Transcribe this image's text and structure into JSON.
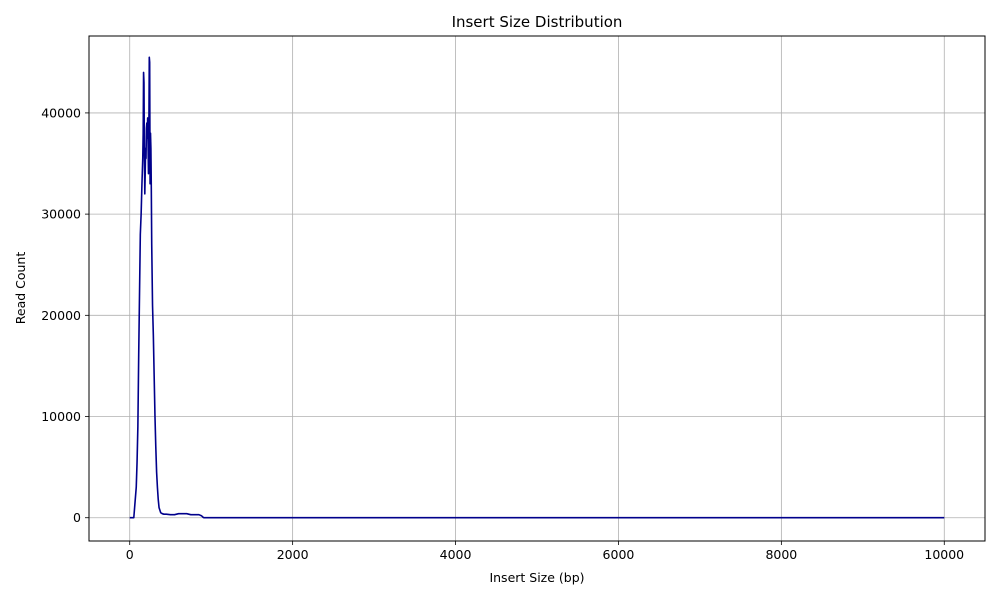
{
  "chart_data": {
    "type": "line",
    "title": "Insert Size Distribution",
    "xlabel": "Insert Size (bp)",
    "ylabel": "Read Count",
    "xlim": [
      -500,
      10500
    ],
    "ylim": [
      -2300,
      47600
    ],
    "x_ticks": [
      0,
      2000,
      4000,
      6000,
      8000,
      10000
    ],
    "x_tick_labels": [
      "0",
      "2000",
      "4000",
      "6000",
      "8000",
      "10000"
    ],
    "y_ticks": [
      0,
      10000,
      20000,
      30000,
      40000
    ],
    "y_tick_labels": [
      "0",
      "10000",
      "20000",
      "30000",
      "40000"
    ],
    "grid": true,
    "line_color": "#00008b",
    "series": [
      {
        "x": [
          0,
          30,
          50,
          60,
          80,
          90,
          100,
          110,
          120,
          130,
          140,
          150,
          160,
          165,
          170,
          175,
          180,
          185,
          190,
          195,
          200,
          205,
          210,
          215,
          220,
          225,
          230,
          235,
          240,
          245,
          250,
          255,
          260,
          265,
          270,
          280,
          290,
          300,
          310,
          320,
          330,
          340,
          350,
          360,
          380,
          400,
          420,
          450,
          500,
          550,
          600,
          650,
          700,
          750,
          780,
          800,
          850,
          880,
          900,
          910,
          1000,
          2000,
          4000,
          6000,
          8000,
          10000
        ],
        "y": [
          0,
          0,
          0,
          1000,
          3000,
          5500,
          9000,
          16000,
          22000,
          28000,
          30000,
          33000,
          35500,
          38000,
          44000,
          43000,
          36000,
          32000,
          34000,
          36500,
          35500,
          38500,
          39000,
          37500,
          39500,
          37000,
          34000,
          38000,
          45500,
          45000,
          33000,
          38000,
          36500,
          32500,
          27000,
          21000,
          18000,
          14000,
          10000,
          7000,
          4500,
          3000,
          1800,
          1000,
          500,
          400,
          350,
          350,
          300,
          300,
          400,
          400,
          400,
          300,
          300,
          300,
          300,
          200,
          50,
          0,
          0,
          0,
          0,
          0,
          0,
          0
        ]
      }
    ]
  }
}
